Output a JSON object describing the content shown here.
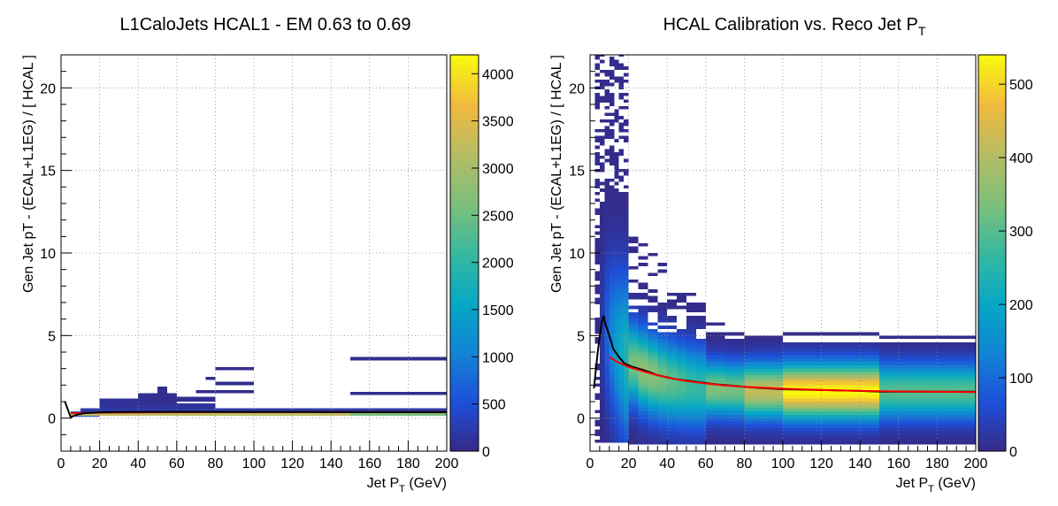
{
  "chart_data": [
    {
      "type": "heatmap",
      "title": "L1CaloJets HCAL1 - EM 0.63 to 0.69",
      "xlabel": "Jet P",
      "xlabel_sub": "T",
      "xlabel_unit": " (GeV)",
      "ylabel": "Gen Jet pT - (ECAL+L1EG) / [ HCAL ]",
      "xlim": [
        0,
        200
      ],
      "ylim": [
        -2,
        22
      ],
      "x_ticks": [
        0,
        20,
        40,
        60,
        80,
        100,
        120,
        140,
        160,
        180,
        200
      ],
      "y_ticks": [
        0,
        5,
        10,
        15,
        20
      ],
      "zlim": [
        0,
        4200
      ],
      "z_ticks": [
        0,
        500,
        1000,
        1500,
        2000,
        2500,
        3000,
        3500,
        4000
      ],
      "grid": true,
      "cells": [
        {
          "x0": 5,
          "x1": 20,
          "y0": 0.1,
          "y1": 0.4,
          "z": 600
        },
        {
          "x0": 5,
          "x1": 150,
          "y0": 0.15,
          "y1": 0.3,
          "z": 3200
        },
        {
          "x0": 150,
          "x1": 200,
          "y0": 0.15,
          "y1": 0.3,
          "z": 2600
        },
        {
          "x0": 10,
          "x1": 200,
          "y0": 0.35,
          "y1": 0.6,
          "z": 200
        },
        {
          "x0": 20,
          "x1": 80,
          "y0": 0.6,
          "y1": 0.9,
          "z": 120
        },
        {
          "x0": 20,
          "x1": 40,
          "y0": 0.9,
          "y1": 1.2,
          "z": 80
        },
        {
          "x0": 40,
          "x1": 60,
          "y0": 0.9,
          "y1": 1.5,
          "z": 70
        },
        {
          "x0": 50,
          "x1": 55,
          "y0": 1.5,
          "y1": 1.9,
          "z": 50
        },
        {
          "x0": 55,
          "x1": 80,
          "y0": 1.0,
          "y1": 1.3,
          "z": 60
        },
        {
          "x0": 70,
          "x1": 80,
          "y0": 1.5,
          "y1": 1.7,
          "z": 40
        },
        {
          "x0": 75,
          "x1": 80,
          "y0": 2.3,
          "y1": 2.5,
          "z": 40
        },
        {
          "x0": 80,
          "x1": 100,
          "y0": 1.5,
          "y1": 1.7,
          "z": 40
        },
        {
          "x0": 80,
          "x1": 100,
          "y0": 2.0,
          "y1": 2.2,
          "z": 40
        },
        {
          "x0": 80,
          "x1": 100,
          "y0": 2.9,
          "y1": 3.1,
          "z": 40
        },
        {
          "x0": 150,
          "x1": 200,
          "y0": 1.4,
          "y1": 1.6,
          "z": 40
        },
        {
          "x0": 150,
          "x1": 200,
          "y0": 3.5,
          "y1": 3.7,
          "z": 40
        }
      ],
      "mean_line": {
        "x": [
          2,
          5,
          8,
          12,
          20,
          30,
          50,
          70,
          90,
          110,
          130,
          150,
          175,
          200
        ],
        "y": [
          1.0,
          0.05,
          0.2,
          0.3,
          0.35,
          0.37,
          0.38,
          0.38,
          0.37,
          0.37,
          0.37,
          0.36,
          0.36,
          0.36
        ]
      },
      "fit_line": {
        "x": [
          5,
          20,
          50,
          80,
          110,
          140,
          170,
          200
        ],
        "y": [
          0.3,
          0.33,
          0.35,
          0.36,
          0.36,
          0.36,
          0.36,
          0.36
        ]
      }
    },
    {
      "type": "heatmap",
      "title": "HCAL Calibration vs. Reco Jet P",
      "title_sub": "T",
      "xlabel": "Jet P",
      "xlabel_sub": "T",
      "xlabel_unit": " (GeV)",
      "ylabel": "Gen Jet pT - (ECAL+L1EG) / [ HCAL ]",
      "xlim": [
        0,
        200
      ],
      "ylim": [
        -2,
        22
      ],
      "x_ticks": [
        0,
        20,
        40,
        60,
        80,
        100,
        120,
        140,
        160,
        180,
        200
      ],
      "y_ticks": [
        0,
        5,
        10,
        15,
        20
      ],
      "zlim": [
        0,
        540
      ],
      "z_ticks": [
        0,
        100,
        200,
        300,
        400,
        500
      ],
      "grid": true,
      "mean_line": {
        "x": [
          2,
          4,
          6,
          7,
          8,
          10,
          12,
          15,
          18,
          22,
          28,
          35,
          45,
          55,
          65,
          75,
          85,
          100,
          120,
          140,
          150,
          170,
          200
        ],
        "y": [
          1.8,
          4.0,
          5.8,
          6.2,
          5.7,
          5.0,
          4.2,
          3.7,
          3.3,
          3.1,
          2.9,
          2.6,
          2.35,
          2.2,
          2.05,
          1.95,
          1.85,
          1.75,
          1.7,
          1.65,
          1.6,
          1.6,
          1.6
        ]
      },
      "fit_line": {
        "x": [
          10,
          15,
          20,
          30,
          40,
          50,
          60,
          70,
          80,
          100,
          120,
          150,
          175,
          200
        ],
        "y": [
          3.7,
          3.35,
          3.1,
          2.75,
          2.45,
          2.25,
          2.1,
          1.98,
          1.9,
          1.78,
          1.7,
          1.63,
          1.6,
          1.58
        ]
      }
    }
  ]
}
